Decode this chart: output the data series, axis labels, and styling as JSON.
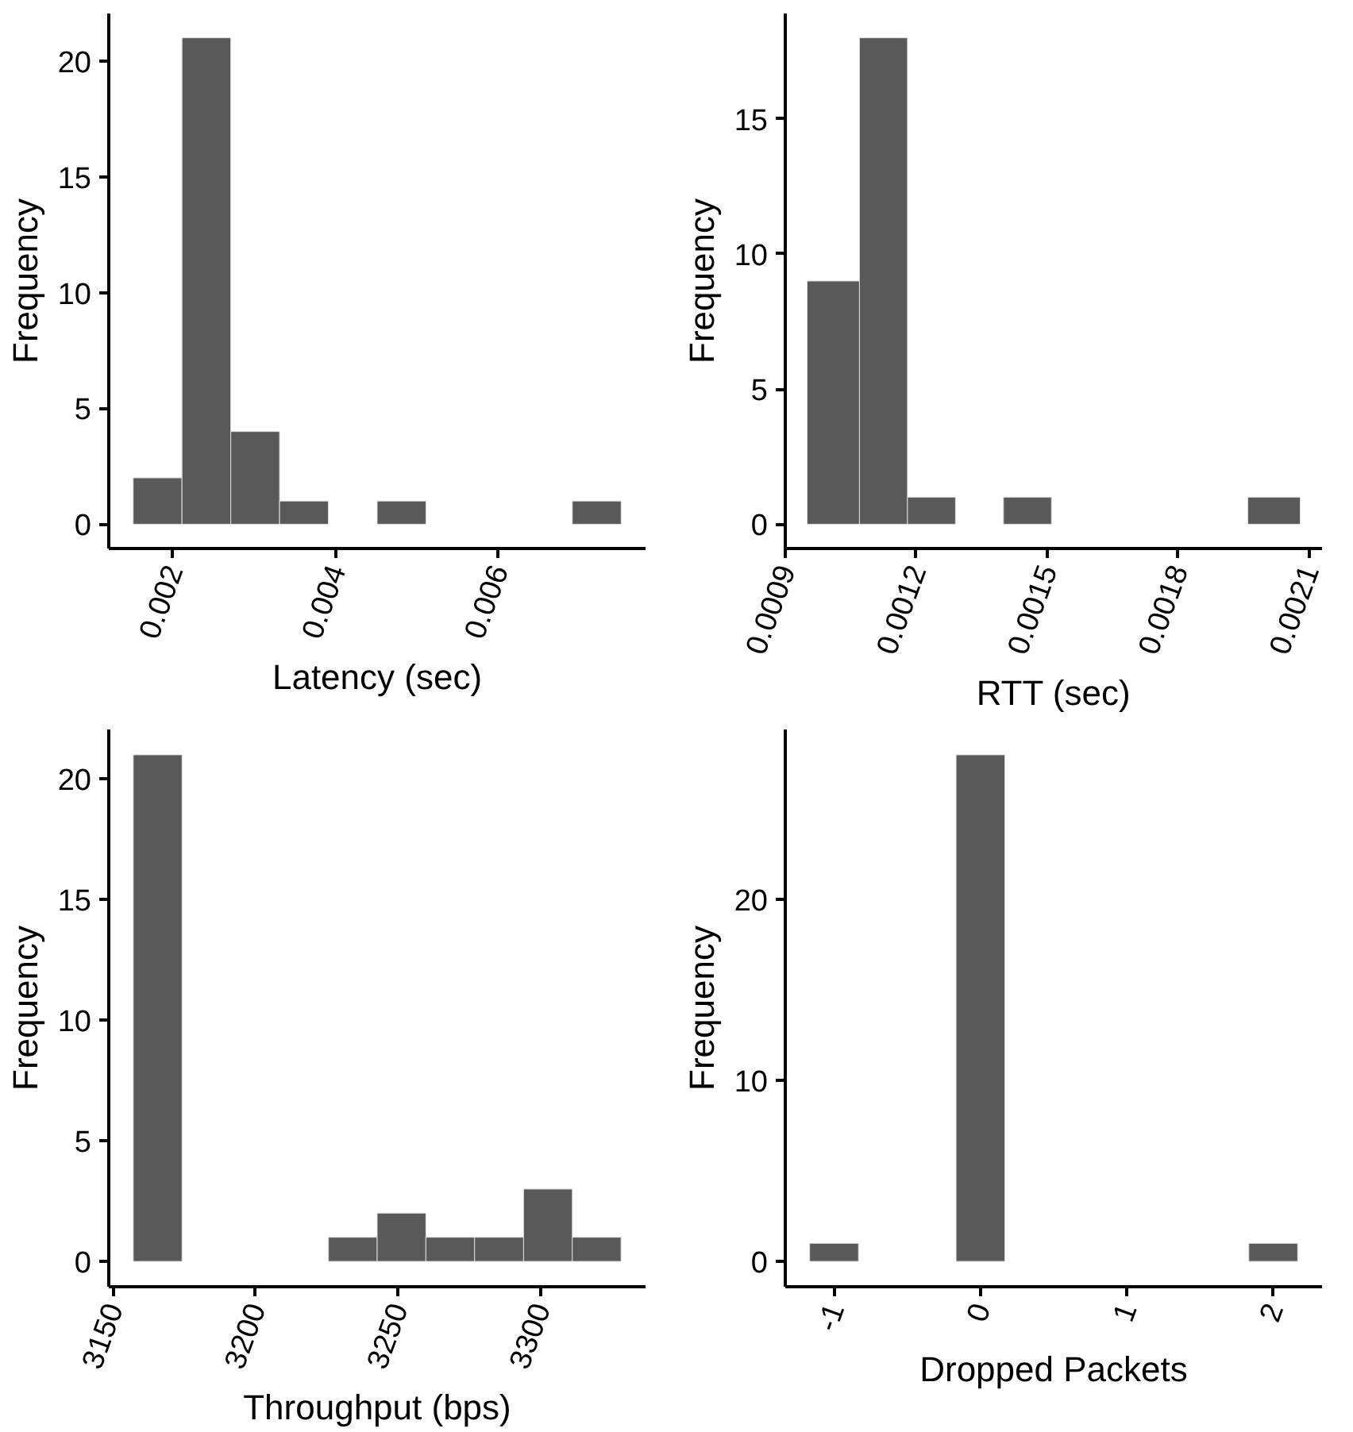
{
  "chart_data": [
    {
      "type": "histogram",
      "xlabel": "Latency (sec)",
      "ylabel": "Frequency",
      "color": "#595959",
      "grid": false,
      "bins": [
        0.00151,
        0.00211,
        0.00271,
        0.00331,
        0.00391,
        0.00451,
        0.00511,
        0.00571,
        0.00631,
        0.00691,
        0.00751
      ],
      "values": [
        2,
        21,
        4,
        1,
        0,
        1,
        0,
        0,
        0,
        1
      ],
      "xlim": [
        0.00121,
        0.00781
      ],
      "ylim": [
        -1.05,
        22.05
      ],
      "xticks": [
        0.002,
        0.004,
        0.006
      ],
      "yticks": [
        0,
        5,
        10,
        15,
        20
      ]
    },
    {
      "type": "histogram",
      "xlabel": "RTT (sec)",
      "ylabel": "Frequency",
      "color": "#595959",
      "grid": false,
      "bins": [
        0.00095,
        0.00107,
        0.00118,
        0.00129,
        0.0014,
        0.00151,
        0.00196,
        0.00208
      ],
      "values": [
        9,
        18,
        1,
        0,
        1,
        0,
        1
      ],
      "xlim": [
        0.0009,
        0.00213
      ],
      "ylim": [
        -0.9,
        18.9
      ],
      "xticks": [
        0.0009,
        0.0012,
        0.0015,
        0.0018,
        0.0021
      ],
      "yticks": [
        0,
        5,
        10,
        15
      ]
    },
    {
      "type": "histogram",
      "xlabel": "Throughput (bps)",
      "ylabel": "Frequency",
      "color": "#595959",
      "grid": false,
      "bins": [
        3157.1,
        3174.2,
        3191.3,
        3208.5,
        3225.6,
        3242.7,
        3259.8,
        3276.9,
        3294.1,
        3311.2,
        3328.3
      ],
      "values": [
        21,
        0,
        0,
        0,
        1,
        2,
        1,
        1,
        3,
        1
      ],
      "xlim": [
        3148.5,
        3336.9
      ],
      "ylim": [
        -1.05,
        22.05
      ],
      "xticks": [
        3150,
        3200,
        3250,
        3300
      ],
      "yticks": [
        0,
        5,
        10,
        15,
        20
      ]
    },
    {
      "type": "histogram",
      "xlabel": "Dropped Packets",
      "ylabel": "Frequency",
      "color": "#595959",
      "grid": false,
      "bins": [
        -1.1667,
        -0.8333,
        -0.5,
        -0.1667,
        0.1667,
        0.5,
        0.8333,
        1.1667,
        1.5,
        1.8333,
        2.1667
      ],
      "values": [
        1,
        0,
        0,
        28,
        0,
        0,
        0,
        0,
        0,
        1
      ],
      "xlim": [
        -1.3333,
        2.3333
      ],
      "ylim": [
        -1.4,
        29.4
      ],
      "xticks": [
        -1,
        0,
        1,
        2
      ],
      "yticks": [
        0,
        10,
        20
      ]
    }
  ]
}
